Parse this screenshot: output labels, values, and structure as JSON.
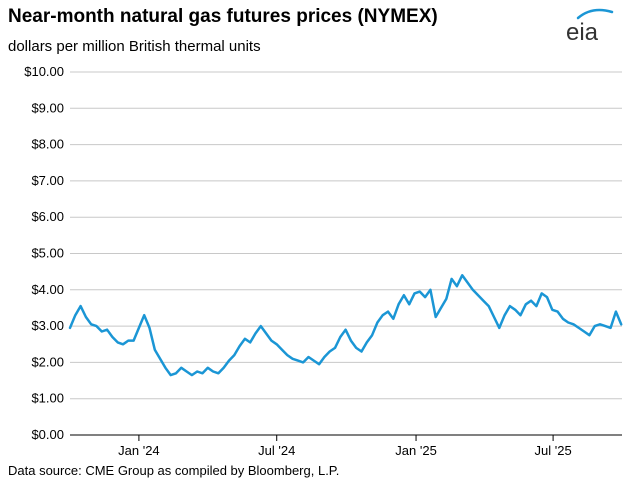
{
  "title": "Near-month natural gas futures prices (NYMEX)",
  "subtitle": "dollars per million British thermal units",
  "source": "Data source: CME Group as compiled by Bloomberg, L.P.",
  "logo_text": "eia",
  "colors": {
    "series": "#1b96d5",
    "grid": "#c8c8c8",
    "logo": "#333333",
    "logo_accent": "#1b96d5"
  },
  "chart_data": {
    "type": "line",
    "title": "Near-month natural gas futures prices (NYMEX)",
    "ylabel": "dollars per million British thermal units",
    "xlabel": "",
    "ylim": [
      0,
      10
    ],
    "xlim": [
      "2023-10-02",
      "2025-09-30"
    ],
    "y_ticks": [
      "$0.00",
      "$1.00",
      "$2.00",
      "$3.00",
      "$4.00",
      "$5.00",
      "$6.00",
      "$7.00",
      "$8.00",
      "$9.00",
      "$10.00"
    ],
    "x_ticks": [
      {
        "date": "2024-01-01",
        "label": "Jan '24"
      },
      {
        "date": "2024-07-01",
        "label": "Jul '24"
      },
      {
        "date": "2025-01-01",
        "label": "Jan '25"
      },
      {
        "date": "2025-07-01",
        "label": "Jul '25"
      }
    ],
    "grid": true,
    "legend": "none",
    "series": [
      {
        "x": [
          "2023-10-02",
          "2023-10-09",
          "2023-10-16",
          "2023-10-23",
          "2023-10-30",
          "2023-11-06",
          "2023-11-13",
          "2023-11-20",
          "2023-11-27",
          "2023-12-04",
          "2023-12-11",
          "2023-12-18",
          "2023-12-25",
          "2024-01-01",
          "2024-01-08",
          "2024-01-15",
          "2024-01-22",
          "2024-01-29",
          "2024-02-05",
          "2024-02-12",
          "2024-02-19",
          "2024-02-26",
          "2024-03-04",
          "2024-03-11",
          "2024-03-18",
          "2024-03-25",
          "2024-04-01",
          "2024-04-08",
          "2024-04-15",
          "2024-04-22",
          "2024-04-29",
          "2024-05-06",
          "2024-05-13",
          "2024-05-20",
          "2024-05-27",
          "2024-06-03",
          "2024-06-10",
          "2024-06-17",
          "2024-06-24",
          "2024-07-01",
          "2024-07-08",
          "2024-07-15",
          "2024-07-22",
          "2024-07-29",
          "2024-08-05",
          "2024-08-12",
          "2024-08-19",
          "2024-08-26",
          "2024-09-02",
          "2024-09-09",
          "2024-09-16",
          "2024-09-23",
          "2024-09-30",
          "2024-10-07",
          "2024-10-14",
          "2024-10-21",
          "2024-10-28",
          "2024-11-04",
          "2024-11-11",
          "2024-11-18",
          "2024-11-25",
          "2024-12-02",
          "2024-12-09",
          "2024-12-16",
          "2024-12-23",
          "2024-12-30",
          "2025-01-06",
          "2025-01-13",
          "2025-01-20",
          "2025-01-27",
          "2025-02-03",
          "2025-02-10",
          "2025-02-17",
          "2025-02-24",
          "2025-03-03",
          "2025-03-10",
          "2025-03-17",
          "2025-03-24",
          "2025-03-31",
          "2025-04-07",
          "2025-04-14",
          "2025-04-21",
          "2025-04-28",
          "2025-05-05",
          "2025-05-12",
          "2025-05-19",
          "2025-05-26",
          "2025-06-02",
          "2025-06-09",
          "2025-06-16",
          "2025-06-23",
          "2025-06-30",
          "2025-07-07",
          "2025-07-14",
          "2025-07-21",
          "2025-07-28",
          "2025-08-04",
          "2025-08-11",
          "2025-08-18",
          "2025-08-25",
          "2025-09-01",
          "2025-09-08",
          "2025-09-15",
          "2025-09-22",
          "2025-09-29"
        ],
        "y": [
          2.95,
          3.3,
          3.55,
          3.25,
          3.05,
          3.0,
          2.85,
          2.9,
          2.7,
          2.55,
          2.5,
          2.6,
          2.6,
          2.95,
          3.3,
          2.95,
          2.35,
          2.1,
          1.85,
          1.65,
          1.7,
          1.85,
          1.75,
          1.65,
          1.75,
          1.7,
          1.85,
          1.75,
          1.7,
          1.85,
          2.05,
          2.2,
          2.45,
          2.65,
          2.55,
          2.8,
          3.0,
          2.8,
          2.6,
          2.5,
          2.35,
          2.2,
          2.1,
          2.05,
          2.0,
          2.15,
          2.05,
          1.95,
          2.15,
          2.3,
          2.4,
          2.7,
          2.9,
          2.6,
          2.4,
          2.3,
          2.55,
          2.75,
          3.1,
          3.3,
          3.4,
          3.2,
          3.6,
          3.85,
          3.6,
          3.9,
          3.95,
          3.8,
          4.0,
          3.25,
          3.5,
          3.75,
          4.3,
          4.1,
          4.4,
          4.2,
          4.0,
          3.85,
          3.7,
          3.55,
          3.25,
          2.95,
          3.3,
          3.55,
          3.45,
          3.3,
          3.6,
          3.7,
          3.55,
          3.9,
          3.8,
          3.45,
          3.4,
          3.2,
          3.1,
          3.05,
          2.95,
          2.85,
          2.75,
          3.0,
          3.05,
          3.0,
          2.95,
          3.4,
          3.05
        ]
      }
    ]
  }
}
